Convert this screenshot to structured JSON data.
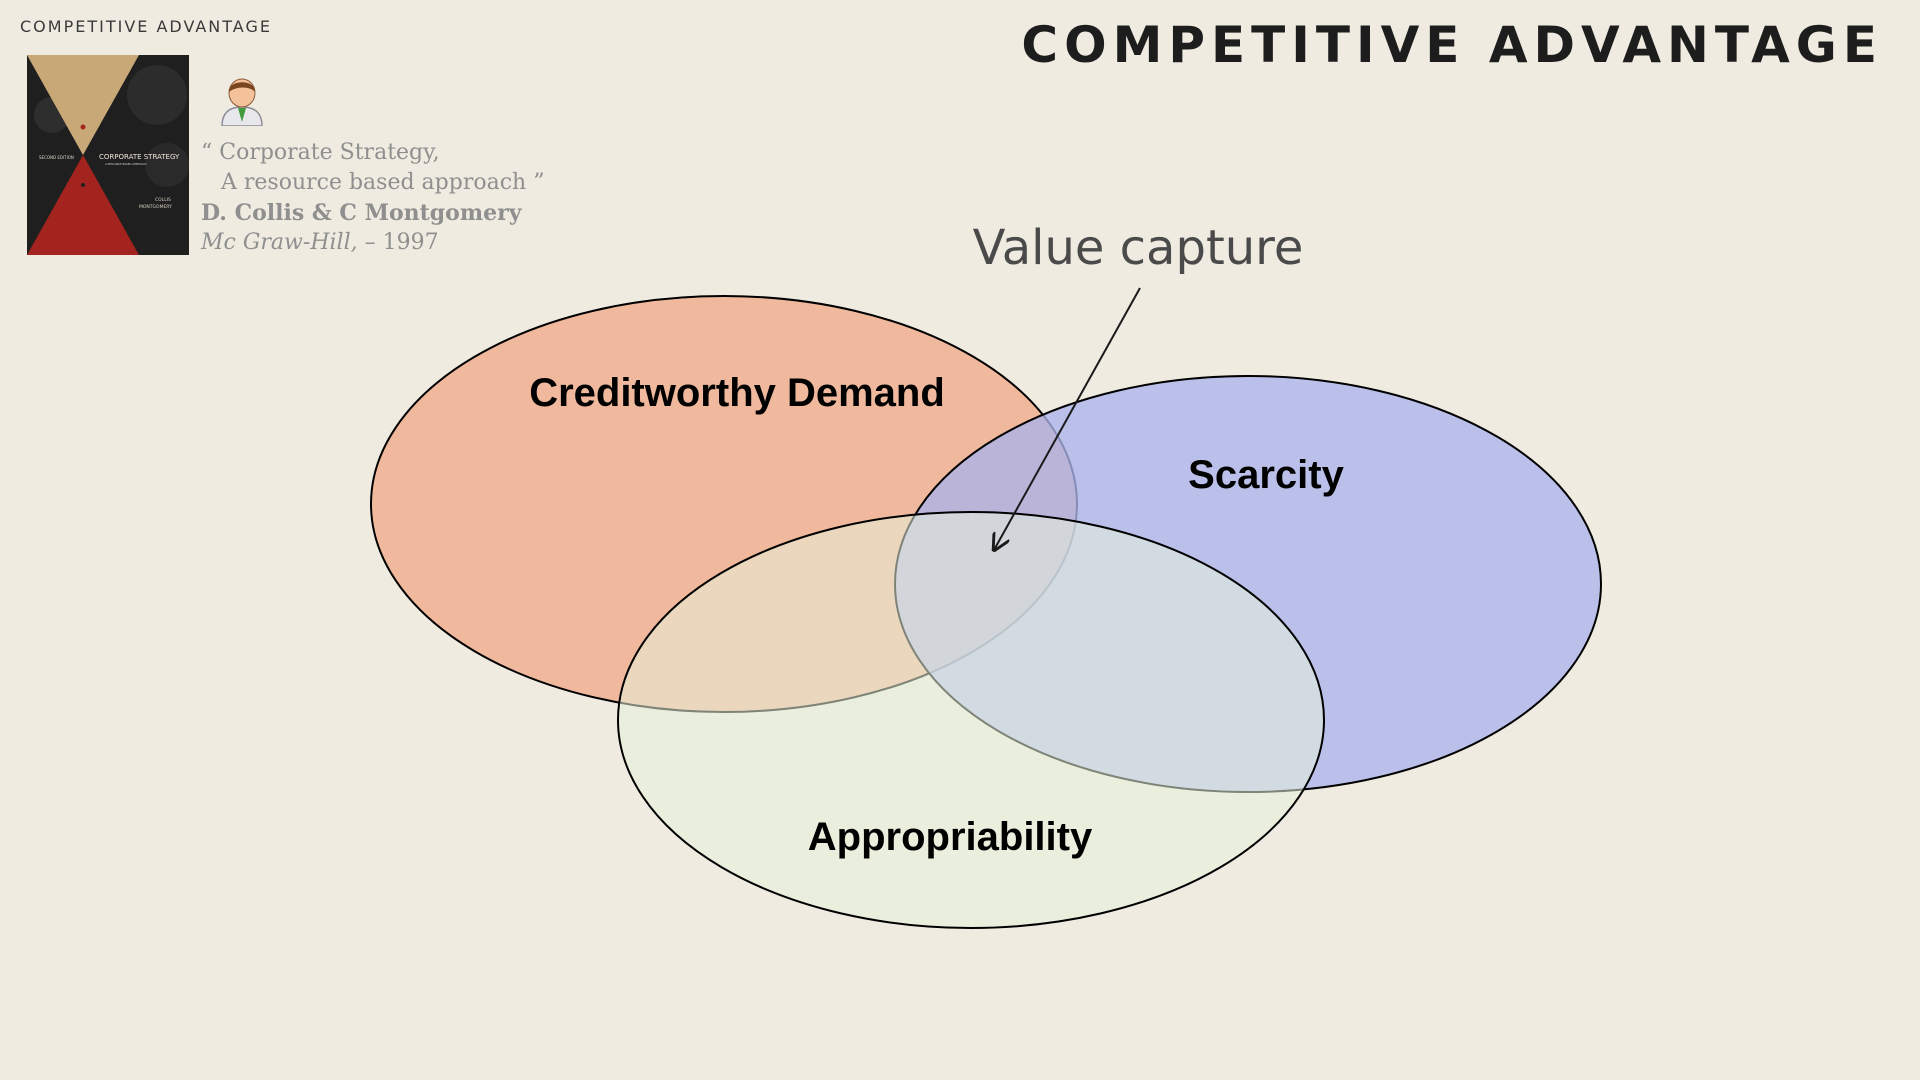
{
  "header": {
    "section_label": "COMPETITIVE ADVANTAGE",
    "title": "COMPETITIVE ADVANTAGE"
  },
  "reference": {
    "book_cover_text": [
      "SECOND EDITION",
      "CORPORATE STRATEGY",
      "A RESOURCE-BASED APPROACH",
      "COLLIS",
      "MONTGOMERY"
    ],
    "quote_line1": "“ Corporate Strategy,",
    "quote_line2": "A resource based approach ”",
    "authors": "D. Collis & C Montgomery",
    "publisher": "Mc Graw-Hill,",
    "year": "– 1997",
    "person_icon": "person-icon"
  },
  "diagram": {
    "annotation": "Value capture",
    "sets": [
      {
        "label": "Creditworthy Demand",
        "color": "#f0b89c"
      },
      {
        "label": "Scarcity",
        "color": "#aab4ea"
      },
      {
        "label": "Appropriability",
        "color": "#e6f0da"
      }
    ],
    "outline_color": "#000000"
  }
}
